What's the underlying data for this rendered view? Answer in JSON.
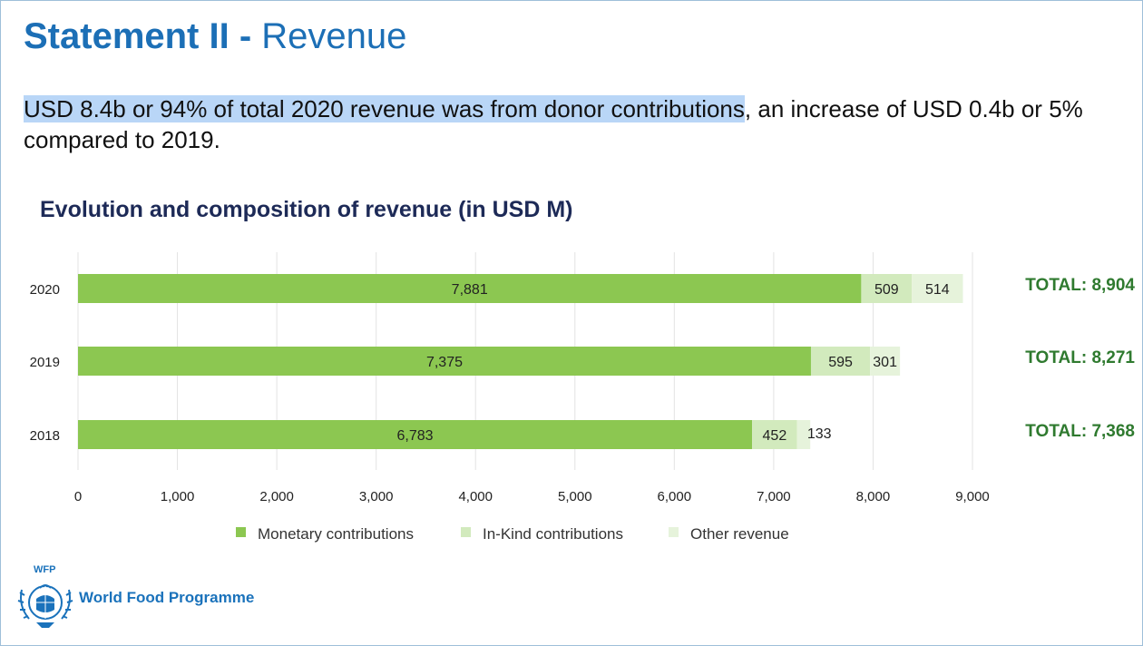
{
  "header": {
    "title_bold": "Statement II",
    "title_separator": " - ",
    "title_rest": "Revenue"
  },
  "summary": {
    "highlighted": "USD 8.4b or 94% of total 2020 revenue was from donor contributions",
    "rest": ", an increase of USD 0.4b or 5% compared to 2019."
  },
  "chart_data": {
    "type": "bar",
    "orientation": "horizontal",
    "stacked": true,
    "title": "Evolution and composition of revenue (in USD M)",
    "categories": [
      "2020",
      "2019",
      "2018"
    ],
    "series": [
      {
        "name": "Monetary contributions",
        "values": [
          7881,
          7375,
          6783
        ],
        "labels": [
          "7,881",
          "7,375",
          "6,783"
        ],
        "color": "#8cc751"
      },
      {
        "name": "In-Kind contributions",
        "values": [
          509,
          595,
          452
        ],
        "labels": [
          "509",
          "595",
          "452"
        ],
        "color": "#d2eabd"
      },
      {
        "name": "Other revenue",
        "values": [
          514,
          301,
          133
        ],
        "labels": [
          "514",
          "301",
          "133"
        ],
        "color": "#e6f3db"
      }
    ],
    "totals": [
      "TOTAL: 8,904",
      "TOTAL: 8,271",
      "TOTAL: 7,368"
    ],
    "xlim": [
      0,
      9000
    ],
    "xticks": [
      0,
      1000,
      2000,
      3000,
      4000,
      5000,
      6000,
      7000,
      8000,
      9000
    ],
    "xtick_labels": [
      "0",
      "1,000",
      "2,000",
      "3,000",
      "4,000",
      "5,000",
      "6,000",
      "7,000",
      "8,000",
      "9,000"
    ],
    "grid": true,
    "legend_position": "bottom",
    "total_color": "#2f7a2f"
  },
  "branding": {
    "abbr": "WFP",
    "name": "World Food Programme",
    "color": "#1a72bb"
  }
}
